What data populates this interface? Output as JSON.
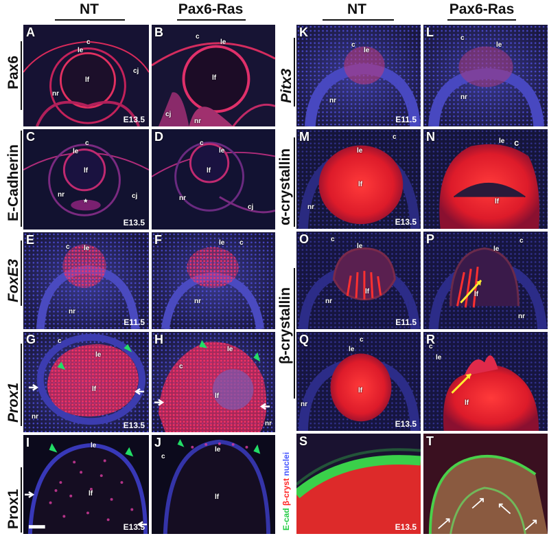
{
  "headers": {
    "nt_left": "NT",
    "ras_left": "Pax6-Ras",
    "nt_right": "NT",
    "ras_right": "Pax6-Ras"
  },
  "row_labels": {
    "pax6": "Pax6",
    "ecad": "E-Cadherin",
    "foxe3": "FoxE3",
    "prox1_it": "Prox1",
    "prox1": "Prox1",
    "pitx3": "Pitx3",
    "alpha": "α-crystallin",
    "beta": "β-crystallin"
  },
  "legend": {
    "ecad": "E-cad",
    "bcryst": "β-cryst",
    "nuclei": "nuclei"
  },
  "colors": {
    "ecad": "#22cc44",
    "bcryst": "#ff2222",
    "nuclei": "#4455ff"
  },
  "panels": {
    "A": {
      "letter": "A",
      "stage": "E13.5",
      "labels": [
        "c",
        "le",
        "lf",
        "nr",
        "cj"
      ]
    },
    "B": {
      "letter": "B",
      "labels": [
        "c",
        "le",
        "lf",
        "cj",
        "nr"
      ]
    },
    "C": {
      "letter": "C",
      "stage": "E13.5",
      "labels": [
        "c",
        "le",
        "lf",
        "nr",
        "cj",
        "*"
      ]
    },
    "D": {
      "letter": "D",
      "labels": [
        "c",
        "le",
        "lf",
        "nr",
        "cj"
      ]
    },
    "E": {
      "letter": "E",
      "stage": "E11.5",
      "labels": [
        "c",
        "le",
        "nr"
      ]
    },
    "F": {
      "letter": "F",
      "labels": [
        "le",
        "c",
        "nr"
      ]
    },
    "G": {
      "letter": "G",
      "stage": "E13.5",
      "labels": [
        "c",
        "le",
        "lf",
        "nr"
      ]
    },
    "H": {
      "letter": "H",
      "labels": [
        "le",
        "c",
        "lf",
        "nr"
      ]
    },
    "I": {
      "letter": "I",
      "stage": "E13.5",
      "labels": [
        "le",
        "lf"
      ]
    },
    "J": {
      "letter": "J",
      "labels": [
        "le",
        "c",
        "lf"
      ]
    },
    "K": {
      "letter": "K",
      "stage": "E11.5",
      "labels": [
        "c",
        "le",
        "nr"
      ]
    },
    "L": {
      "letter": "L",
      "labels": [
        "c",
        "le",
        "nr"
      ]
    },
    "M": {
      "letter": "M",
      "stage": "E13.5",
      "labels": [
        "le",
        "c",
        "lf",
        "nr"
      ]
    },
    "N": {
      "letter": "N",
      "labels": [
        "le",
        "c",
        "lf"
      ]
    },
    "O": {
      "letter": "O",
      "stage": "E11.5",
      "labels": [
        "c",
        "le",
        "lf",
        "nr"
      ]
    },
    "P": {
      "letter": "P",
      "labels": [
        "c",
        "le",
        "lf",
        "nr"
      ]
    },
    "Q": {
      "letter": "Q",
      "stage": "E13.5",
      "labels": [
        "c",
        "le",
        "lf",
        "nr"
      ]
    },
    "R": {
      "letter": "R",
      "labels": [
        "c",
        "le",
        "lf"
      ]
    },
    "S": {
      "letter": "S",
      "stage": "E13.5"
    },
    "T": {
      "letter": "T"
    }
  }
}
